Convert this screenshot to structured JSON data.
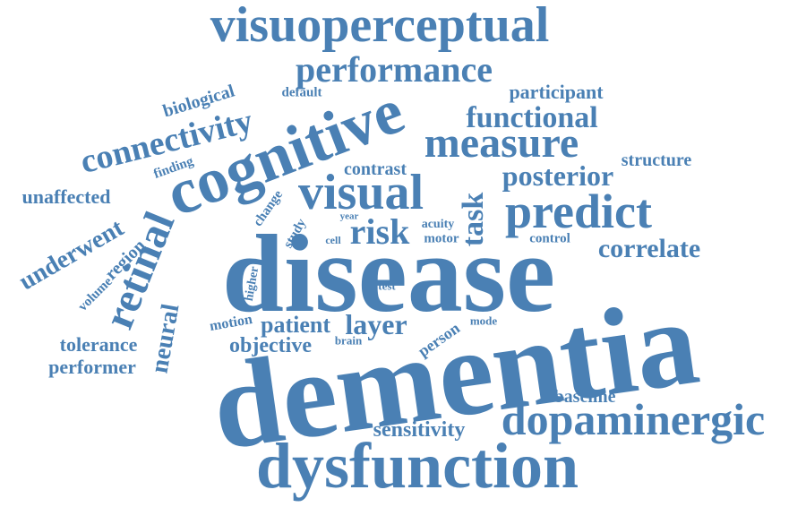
{
  "word_cloud": {
    "color": "#4a80b4",
    "words": [
      "visuoperceptual",
      "performance",
      "participant",
      "default",
      "biological",
      "functional",
      "cognitive",
      "measure",
      "connectivity",
      "structure",
      "finding",
      "contrast",
      "posterior",
      "unaffected",
      "visual",
      "predict",
      "change",
      "task",
      "underwent",
      "year",
      "acuity",
      "study",
      "risk",
      "cell",
      "motor",
      "control",
      "correlate",
      "region",
      "retinal",
      "disease",
      "volume",
      "higher",
      "test",
      "neural",
      "motion",
      "patient",
      "layer",
      "mode",
      "brain",
      "person",
      "tolerance",
      "objective",
      "performer",
      "dementia",
      "baseline",
      "dopaminergic",
      "sensitivity",
      "dysfunction"
    ]
  }
}
